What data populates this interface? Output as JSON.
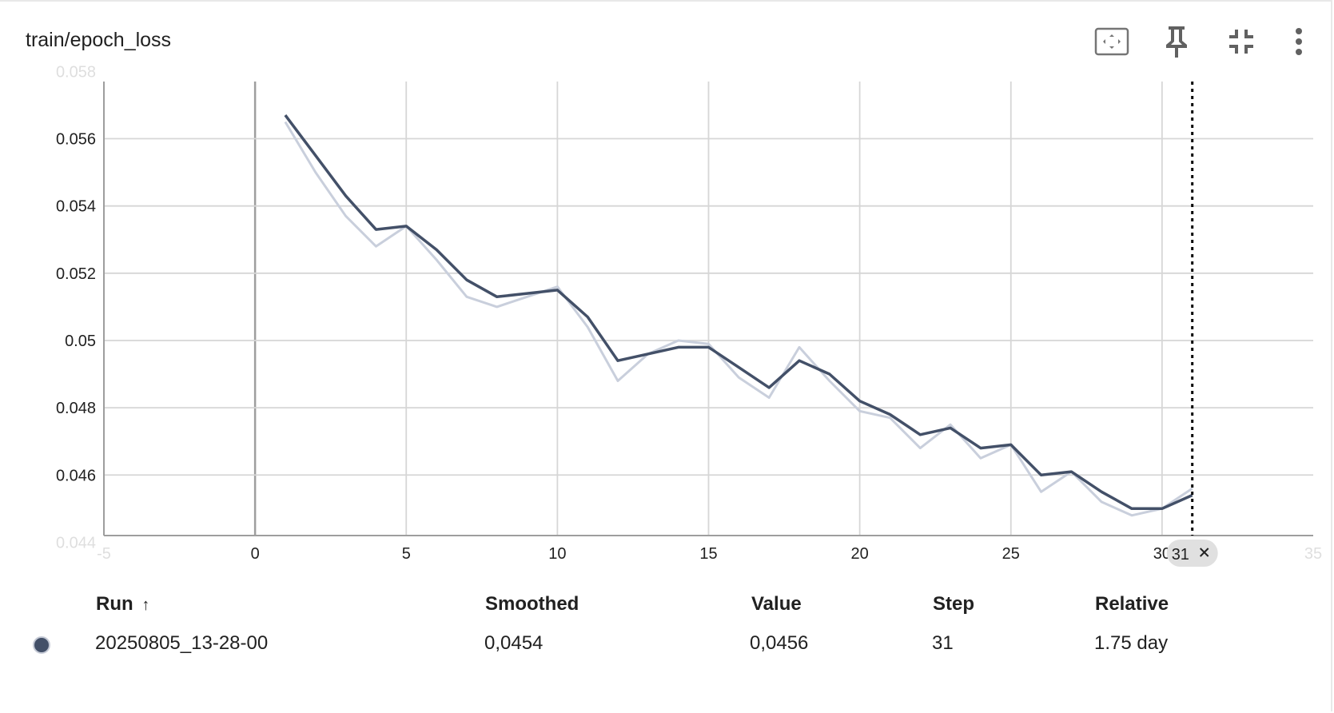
{
  "card": {
    "title": "train/epoch_loss",
    "icons": {
      "fit": "fit-domain-icon",
      "pin": "pin-icon",
      "collapse": "collapse-icon",
      "more": "more-vert-icon"
    }
  },
  "chart_data": {
    "type": "line",
    "title": "train/epoch_loss",
    "xlabel": "",
    "ylabel": "",
    "xlim": [
      -5,
      35
    ],
    "ylim": [
      0.0442,
      0.0577
    ],
    "x_ticks": [
      0,
      5,
      10,
      15,
      20,
      25,
      30
    ],
    "y_ticks": [
      0.046,
      0.048,
      0.05,
      0.052,
      0.054,
      0.056
    ],
    "y_tick_labels": [
      "0.046",
      "0.048",
      "0.05",
      "0.052",
      "0.054",
      "0.056"
    ],
    "grid": true,
    "hover_step": 31,
    "hover_label": "31",
    "series": [
      {
        "name": "20250805_13-28-00",
        "kind": "raw",
        "color": "#c9cfdc",
        "x": [
          1,
          2,
          3,
          4,
          5,
          6,
          7,
          8,
          9,
          10,
          11,
          12,
          13,
          14,
          15,
          16,
          17,
          18,
          19,
          20,
          21,
          22,
          23,
          24,
          25,
          26,
          27,
          28,
          29,
          30,
          31
        ],
        "values": [
          0.0565,
          0.055,
          0.0537,
          0.0528,
          0.0534,
          0.0524,
          0.0513,
          0.051,
          0.0513,
          0.0516,
          0.0504,
          0.0488,
          0.0496,
          0.05,
          0.0499,
          0.0489,
          0.0483,
          0.0498,
          0.0488,
          0.0479,
          0.0477,
          0.0468,
          0.0475,
          0.0465,
          0.0469,
          0.0455,
          0.0461,
          0.0452,
          0.0448,
          0.045,
          0.0456
        ]
      },
      {
        "name": "20250805_13-28-00",
        "kind": "smoothed",
        "color": "#435068",
        "x": [
          1,
          2,
          3,
          4,
          5,
          6,
          7,
          8,
          9,
          10,
          11,
          12,
          13,
          14,
          15,
          16,
          17,
          18,
          19,
          20,
          21,
          22,
          23,
          24,
          25,
          26,
          27,
          28,
          29,
          30,
          31
        ],
        "values": [
          0.0567,
          0.0555,
          0.0543,
          0.0533,
          0.0534,
          0.0527,
          0.0518,
          0.0513,
          0.0514,
          0.0515,
          0.0507,
          0.0494,
          0.0496,
          0.0498,
          0.0498,
          0.0492,
          0.0486,
          0.0494,
          0.049,
          0.0482,
          0.0478,
          0.0472,
          0.0474,
          0.0468,
          0.0469,
          0.046,
          0.0461,
          0.0455,
          0.045,
          0.045,
          0.0454
        ]
      }
    ]
  },
  "table": {
    "headers": {
      "run": "Run",
      "sort_arrow": "↑",
      "smoothed": "Smoothed",
      "value": "Value",
      "step": "Step",
      "relative": "Relative"
    },
    "rows": [
      {
        "run": "20250805_13-28-00",
        "color": "#435068",
        "smoothed": "0,0454",
        "value": "0,0456",
        "step": "31",
        "relative": "1.75 day"
      }
    ]
  }
}
